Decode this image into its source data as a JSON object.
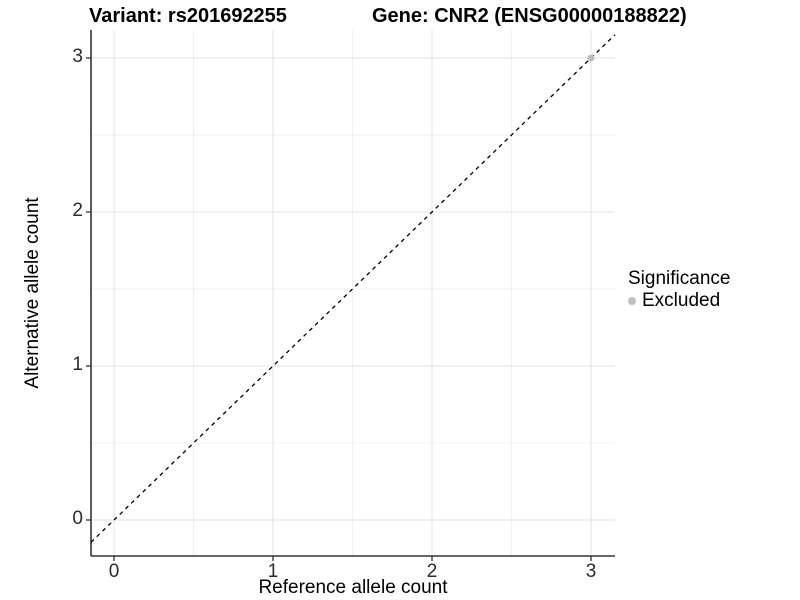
{
  "page": {
    "background": "#ffffff"
  },
  "header": {
    "title_left": "Variant: rs201692255",
    "title_right": "Gene: CNR2 (ENSG00000188822)"
  },
  "axes": {
    "x_title": "Reference allele count",
    "y_title": "Alternative allele count",
    "x_tick_labels": [
      "0",
      "1",
      "2",
      "3"
    ],
    "y_tick_labels": [
      "0",
      "1",
      "2",
      "3"
    ]
  },
  "legend": {
    "title": "Significance",
    "items": [
      {
        "label": "Excluded",
        "marker": "circle",
        "color": "#bebebe"
      }
    ]
  },
  "chart_data": {
    "type": "scatter",
    "title": "Variant: rs201692255 / Gene: CNR2 (ENSG00000188822)",
    "xlabel": "Reference allele count",
    "ylabel": "Alternative allele count",
    "xlim": [
      -0.15,
      3.15
    ],
    "ylim": [
      -0.23,
      3.18
    ],
    "x_ticks": [
      0,
      1,
      2,
      3
    ],
    "y_ticks": [
      0,
      1,
      2,
      3
    ],
    "x_minor_ticks": [
      0.5,
      1.5,
      2.5
    ],
    "y_minor_ticks": [
      0.5,
      1.5,
      2.5
    ],
    "grid": "major+minor",
    "legend_position": "right",
    "series": [
      {
        "name": "Excluded",
        "color": "#bebebe",
        "marker": "circle",
        "points": [
          [
            3,
            3
          ]
        ]
      }
    ],
    "reference_line": {
      "type": "identity",
      "slope": 1,
      "intercept": 0,
      "style": "dashed",
      "color": "#000000"
    }
  },
  "style": {
    "grid_major_color": "#e3e3e3",
    "grid_minor_color": "#f0f0f0",
    "axis_line_color": "#333333",
    "tick_color": "#333333",
    "point_radius": 3.5
  }
}
